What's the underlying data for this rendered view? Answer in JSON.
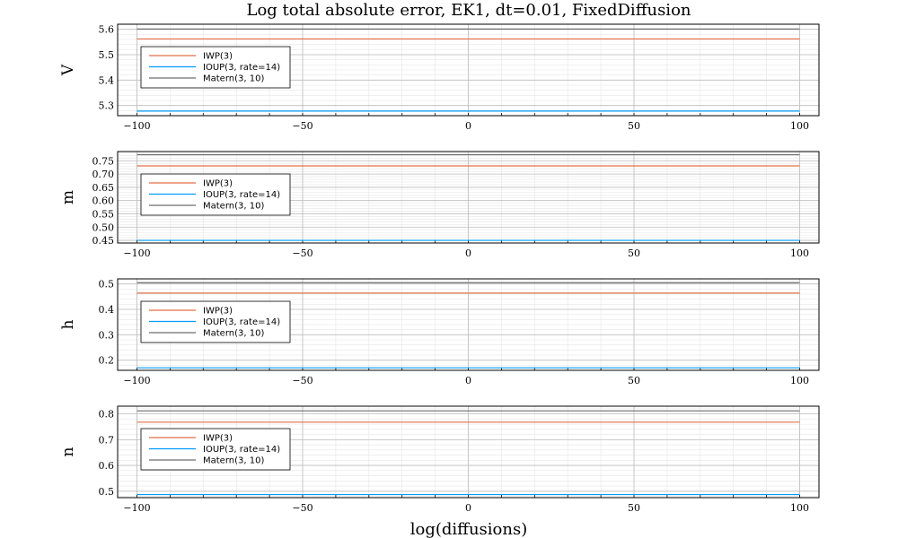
{
  "figure": {
    "title": "Log total absolute error, EK1, dt=0.01, FixedDiffusion",
    "xlabel": "log(diffusions)"
  },
  "chart_data": [
    {
      "type": "line",
      "ylabel": "V",
      "xlim": [
        -100,
        100
      ],
      "ylim": [
        5.26,
        5.62
      ],
      "x_ticks": [
        -100,
        -50,
        0,
        50,
        100
      ],
      "x_tick_labels": [
        "−100",
        "−50",
        "0",
        "50",
        "100"
      ],
      "y_ticks": [
        5.3,
        5.4,
        5.5,
        5.6
      ],
      "y_tick_labels": [
        "5.3",
        "5.4",
        "5.5",
        "5.6"
      ],
      "grid": true,
      "legend_position": "left",
      "x": [
        -100,
        100
      ],
      "series": [
        {
          "name": "IWP(3)",
          "color": "#e26f46",
          "values": [
            5.562,
            5.562
          ]
        },
        {
          "name": "IOUP(3, rate=14)",
          "color": "#009afa",
          "values": [
            5.278,
            5.278
          ]
        },
        {
          "name": "Matern(3, 10)",
          "color": "#6d6d6d",
          "values": [
            5.601,
            5.601
          ]
        }
      ]
    },
    {
      "type": "line",
      "ylabel": "m",
      "xlim": [
        -100,
        100
      ],
      "ylim": [
        0.44,
        0.785
      ],
      "x_ticks": [
        -100,
        -50,
        0,
        50,
        100
      ],
      "x_tick_labels": [
        "−100",
        "−50",
        "0",
        "50",
        "100"
      ],
      "y_ticks": [
        0.45,
        0.5,
        0.55,
        0.6,
        0.65,
        0.7,
        0.75
      ],
      "y_tick_labels": [
        "0.45",
        "0.50",
        "0.55",
        "0.60",
        "0.65",
        "0.70",
        "0.75"
      ],
      "grid": true,
      "legend_position": "left",
      "x": [
        -100,
        100
      ],
      "series": [
        {
          "name": "IWP(3)",
          "color": "#e26f46",
          "values": [
            0.731,
            0.731
          ]
        },
        {
          "name": "IOUP(3, rate=14)",
          "color": "#009afa",
          "values": [
            0.45,
            0.45
          ]
        },
        {
          "name": "Matern(3, 10)",
          "color": "#6d6d6d",
          "values": [
            0.773,
            0.773
          ]
        }
      ]
    },
    {
      "type": "line",
      "ylabel": "h",
      "xlim": [
        -100,
        100
      ],
      "ylim": [
        0.16,
        0.52
      ],
      "x_ticks": [
        -100,
        -50,
        0,
        50,
        100
      ],
      "x_tick_labels": [
        "−100",
        "−50",
        "0",
        "50",
        "100"
      ],
      "y_ticks": [
        0.2,
        0.3,
        0.4,
        0.5
      ],
      "y_tick_labels": [
        "0.2",
        "0.3",
        "0.4",
        "0.5"
      ],
      "grid": true,
      "legend_position": "left",
      "x": [
        -100,
        100
      ],
      "series": [
        {
          "name": "IWP(3)",
          "color": "#e26f46",
          "values": [
            0.464,
            0.464
          ]
        },
        {
          "name": "IOUP(3, rate=14)",
          "color": "#009afa",
          "values": [
            0.17,
            0.17
          ]
        },
        {
          "name": "Matern(3, 10)",
          "color": "#6d6d6d",
          "values": [
            0.505,
            0.505
          ]
        }
      ]
    },
    {
      "type": "line",
      "ylabel": "n",
      "xlim": [
        -100,
        100
      ],
      "ylim": [
        0.475,
        0.83
      ],
      "x_ticks": [
        -100,
        -50,
        0,
        50,
        100
      ],
      "x_tick_labels": [
        "−100",
        "−50",
        "0",
        "50",
        "100"
      ],
      "y_ticks": [
        0.5,
        0.6,
        0.7,
        0.8
      ],
      "y_tick_labels": [
        "0.5",
        "0.6",
        "0.7",
        "0.8"
      ],
      "grid": true,
      "legend_position": "left",
      "x": [
        -100,
        100
      ],
      "series": [
        {
          "name": "IWP(3)",
          "color": "#e26f46",
          "values": [
            0.768,
            0.768
          ]
        },
        {
          "name": "IOUP(3, rate=14)",
          "color": "#009afa",
          "values": [
            0.487,
            0.487
          ]
        },
        {
          "name": "Matern(3, 10)",
          "color": "#6d6d6d",
          "values": [
            0.812,
            0.812
          ]
        }
      ]
    }
  ]
}
